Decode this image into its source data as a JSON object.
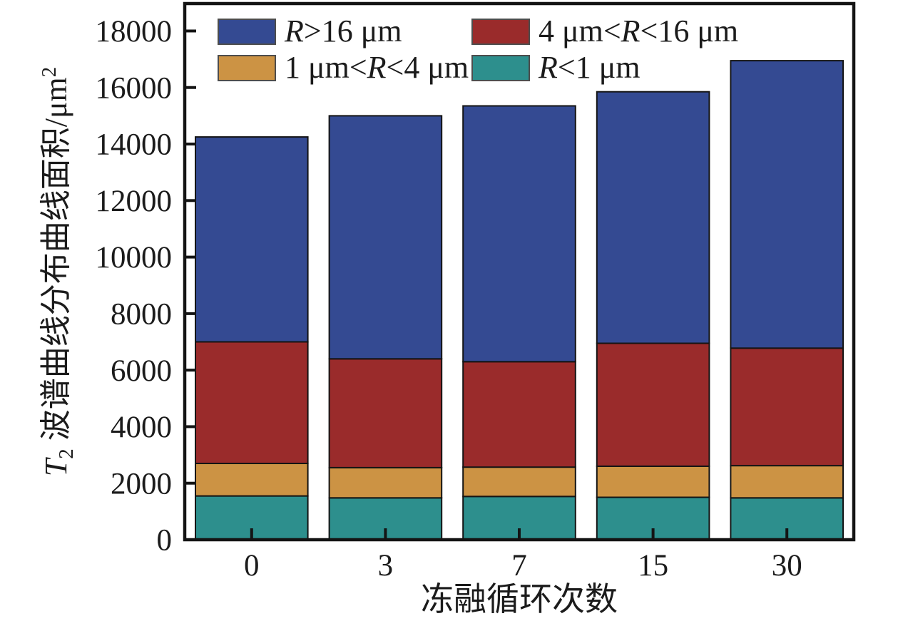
{
  "chart_data": {
    "type": "bar",
    "stacked": true,
    "xlabel": "冻融循环次数",
    "ylabel": "T2 波谱曲线分布曲线面积/μm2",
    "ylabel_parts": {
      "var_italic": "T",
      "var_subscript": "2",
      "text": " 波谱曲线分布曲线面积/μm",
      "superscript": "2"
    },
    "categories": [
      "0",
      "3",
      "7",
      "15",
      "30"
    ],
    "series": [
      {
        "name": "R<1 μm",
        "color": "#2D8F8D",
        "values": [
          1550,
          1480,
          1530,
          1500,
          1480
        ]
      },
      {
        "name": "1 μm<R<4 μm",
        "color": "#CC9344",
        "values": [
          1150,
          1070,
          1040,
          1100,
          1140
        ]
      },
      {
        "name": "4 μm<R<16 μm",
        "color": "#9A2B2B",
        "values": [
          4300,
          3850,
          3730,
          4350,
          4160
        ]
      },
      {
        "name": "R>16 μm",
        "color": "#344A92",
        "values": [
          7250,
          8600,
          9050,
          8900,
          10170
        ]
      }
    ],
    "stack_totals": [
      14250,
      15000,
      15350,
      15850,
      16950
    ],
    "legend_order": [
      "R>16 μm",
      "4 μm<R<16 μm",
      "1 μm<R<4 μm",
      "R<1 μm"
    ],
    "legend_position": "top-left-inside, 2 columns",
    "ylim": [
      0,
      18970
    ],
    "yticks": [
      0,
      2000,
      4000,
      6000,
      8000,
      10000,
      12000,
      14000,
      16000,
      18000
    ],
    "grid": false,
    "bar_width_fraction": 0.84
  },
  "colors": {
    "background": "#ffffff",
    "frame": "#141414",
    "bar_outline": "#141414",
    "text": "#1b1b1b"
  }
}
